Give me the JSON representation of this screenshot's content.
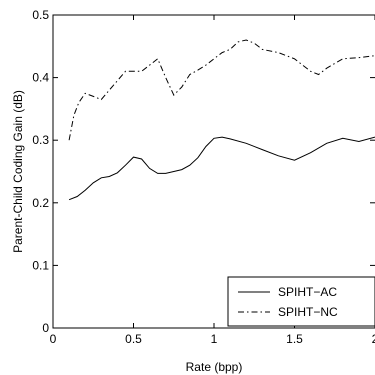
{
  "chart_data": {
    "type": "line",
    "title": "",
    "xlabel": "Rate (bpp)",
    "ylabel": "Parent-Child Coding Gain (dB)",
    "xlim": [
      0,
      2
    ],
    "ylim": [
      0,
      0.5
    ],
    "xticks": [
      0,
      0.5,
      1,
      1.5,
      2
    ],
    "xtick_labels": [
      "0",
      "0.5",
      "1",
      "1.5",
      "2"
    ],
    "yticks": [
      0,
      0.1,
      0.2,
      0.3,
      0.4,
      0.5
    ],
    "ytick_labels": [
      "0",
      "0.1",
      "0.2",
      "0.3",
      "0.4",
      "0.5"
    ],
    "grid": false,
    "legend_position": "bottom-right",
    "series": [
      {
        "name": "SPIHT−AC",
        "style": "solid",
        "x": [
          0.1,
          0.15,
          0.2,
          0.25,
          0.3,
          0.35,
          0.4,
          0.45,
          0.5,
          0.55,
          0.6,
          0.65,
          0.7,
          0.75,
          0.8,
          0.85,
          0.9,
          0.95,
          1.0,
          1.05,
          1.1,
          1.2,
          1.3,
          1.4,
          1.5,
          1.6,
          1.7,
          1.8,
          1.9,
          2.0
        ],
        "y": [
          0.205,
          0.21,
          0.22,
          0.232,
          0.24,
          0.242,
          0.248,
          0.26,
          0.273,
          0.27,
          0.255,
          0.247,
          0.247,
          0.25,
          0.253,
          0.26,
          0.272,
          0.29,
          0.303,
          0.305,
          0.302,
          0.295,
          0.285,
          0.275,
          0.268,
          0.28,
          0.295,
          0.303,
          0.298,
          0.305
        ]
      },
      {
        "name": "SPIHT−NC",
        "style": "dashdot",
        "x": [
          0.1,
          0.13,
          0.16,
          0.2,
          0.25,
          0.3,
          0.35,
          0.4,
          0.45,
          0.5,
          0.55,
          0.6,
          0.65,
          0.7,
          0.75,
          0.8,
          0.85,
          0.9,
          0.95,
          1.0,
          1.05,
          1.1,
          1.15,
          1.2,
          1.25,
          1.3,
          1.4,
          1.5,
          1.6,
          1.65,
          1.7,
          1.8,
          1.9,
          2.0
        ],
        "y": [
          0.3,
          0.34,
          0.36,
          0.375,
          0.37,
          0.365,
          0.38,
          0.395,
          0.41,
          0.41,
          0.41,
          0.42,
          0.43,
          0.4,
          0.372,
          0.385,
          0.405,
          0.412,
          0.42,
          0.43,
          0.44,
          0.445,
          0.457,
          0.46,
          0.455,
          0.445,
          0.44,
          0.43,
          0.41,
          0.405,
          0.415,
          0.43,
          0.432,
          0.435
        ]
      }
    ]
  }
}
